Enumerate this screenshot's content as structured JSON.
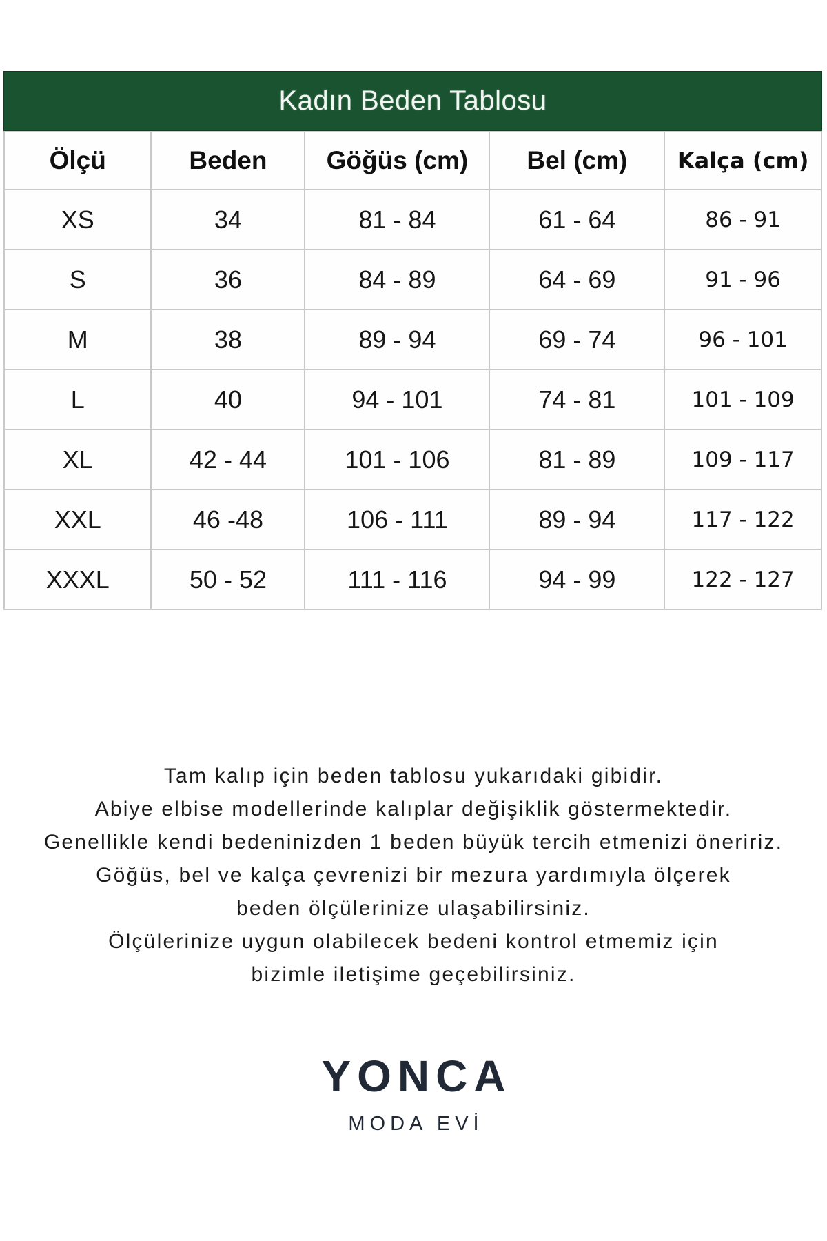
{
  "page": {
    "background": "#ffffff"
  },
  "size_chart": {
    "title": "Kadın Beden Tablosu",
    "header_bg": "#1a5330",
    "header_text_color": "#f2f6f2",
    "border_color": "#c9c9c9",
    "columns": [
      "Ölçü",
      "Beden",
      "Göğüs (cm)",
      "Bel (cm)",
      "Kalça (cm)"
    ],
    "rows": [
      [
        "XS",
        "34",
        "81 - 84",
        "61 - 64",
        "86 - 91"
      ],
      [
        "S",
        "36",
        "84 - 89",
        "64 - 69",
        "91 - 96"
      ],
      [
        "M",
        "38",
        "89 - 94",
        "69 - 74",
        "96 - 101"
      ],
      [
        "L",
        "40",
        "94 - 101",
        "74 - 81",
        "101 - 109"
      ],
      [
        "XL",
        "42 - 44",
        "101 - 106",
        "81 - 89",
        "109 - 117"
      ],
      [
        "XXL",
        "46 -48",
        "106 - 111",
        "89 - 94",
        "117 - 122"
      ],
      [
        "XXXL",
        "50 - 52",
        "111 - 116",
        "94 - 99",
        "122 - 127"
      ]
    ]
  },
  "notes": {
    "lines": [
      "Tam kalıp için beden tablosu yukarıdaki gibidir.",
      "Abiye elbise modellerinde kalıplar değişiklik göstermektedir.",
      "Genellikle kendi bedeninizden 1 beden büyük tercih etmenizi öneririz.",
      "Göğüs, bel ve kalça çevrenizi bir mezura yardımıyla ölçerek",
      "beden ölçülerinize ulaşabilirsiniz.",
      "Ölçülerinize uygun olabilecek bedeni kontrol etmemiz için",
      "bizimle iletişime geçebilirsiniz."
    ]
  },
  "brand": {
    "name": "YONCA",
    "subtitle": "MODA EVİ",
    "color": "#212936"
  }
}
